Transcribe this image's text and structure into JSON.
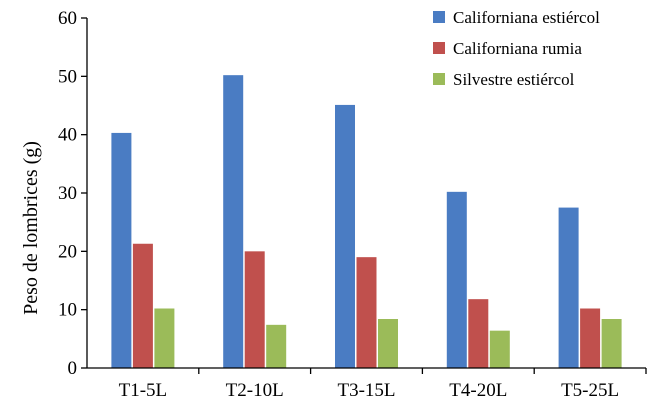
{
  "chart_data": {
    "type": "bar",
    "title": "",
    "xlabel": "",
    "ylabel": "Peso de lombrices (g)",
    "categories": [
      "T1-5L",
      "T2-10L",
      "T3-15L",
      "T4-20L",
      "T5-25L"
    ],
    "series": [
      {
        "name": "Californiana estiércol",
        "color": "#4a7cc3",
        "values": [
          40.3,
          50.2,
          45.1,
          30.2,
          27.5
        ]
      },
      {
        "name": "Californiana rumia",
        "color": "#c0504d",
        "values": [
          21.3,
          20.0,
          19.0,
          11.8,
          10.2
        ]
      },
      {
        "name": "Silvestre estiércol",
        "color": "#9bbb59",
        "values": [
          10.2,
          7.4,
          8.4,
          6.4,
          8.4
        ]
      }
    ],
    "ylim": [
      0,
      60
    ],
    "yticks": [
      0,
      10,
      20,
      30,
      40,
      50,
      60
    ],
    "grid": false,
    "legend_position": "top-right"
  }
}
